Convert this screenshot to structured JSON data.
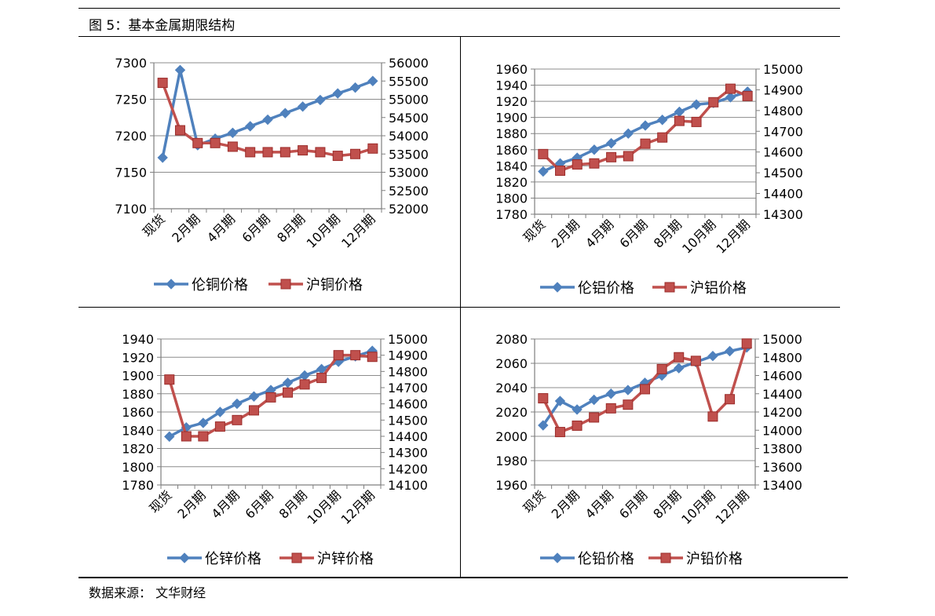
{
  "title": "图 5：基本金属期限结构",
  "source": "数据来源： 文华财经",
  "colors": {
    "lme": "#4F81BD",
    "shfe": "#C0504D",
    "grid": "#8C8C8C",
    "axis": "#7F7F7F"
  },
  "chart_data": [
    {
      "type": "line",
      "x_labels": [
        "现货",
        "",
        "2月期",
        "",
        "4月期",
        "",
        "6月期",
        "",
        "8月期",
        "",
        "10月期",
        "",
        "12月期"
      ],
      "left_axis": {
        "min": 7100,
        "max": 7300,
        "ticks": [
          "7100",
          "7150",
          "7200",
          "7250",
          "7300"
        ]
      },
      "right_axis": {
        "min": 52000,
        "max": 56000,
        "ticks": [
          "52000",
          "52500",
          "53000",
          "53500",
          "54000",
          "54500",
          "55000",
          "55500",
          "56000"
        ]
      },
      "series": [
        {
          "name": "伦铜价格",
          "axis": "left",
          "marker": "diamond",
          "values": [
            7170,
            7290,
            7187,
            7196,
            7204,
            7213,
            7222,
            7231,
            7240,
            7249,
            7258,
            7266,
            7275
          ]
        },
        {
          "name": "沪铜价格",
          "axis": "right",
          "marker": "square",
          "values": [
            55450,
            54150,
            53800,
            53800,
            53700,
            53550,
            53550,
            53550,
            53600,
            53550,
            53450,
            53500,
            53650
          ]
        }
      ]
    },
    {
      "type": "line",
      "x_labels": [
        "现货",
        "",
        "2月期",
        "",
        "4月期",
        "",
        "6月期",
        "",
        "8月期",
        "",
        "10月期",
        "",
        "12月期"
      ],
      "left_axis": {
        "min": 1780,
        "max": 1960,
        "ticks": [
          "1780",
          "1800",
          "1820",
          "1840",
          "1860",
          "1880",
          "1900",
          "1920",
          "1940",
          "1960"
        ]
      },
      "right_axis": {
        "min": 14300,
        "max": 15000,
        "ticks": [
          "14300",
          "14400",
          "14500",
          "14600",
          "14700",
          "14800",
          "14900",
          "15000"
        ]
      },
      "series": [
        {
          "name": "伦铝价格",
          "axis": "left",
          "marker": "diamond",
          "values": [
            1833,
            1843,
            1850,
            1860,
            1868,
            1880,
            1890,
            1897,
            1907,
            1916,
            1918,
            1925,
            1932
          ]
        },
        {
          "name": "沪铝价格",
          "axis": "right",
          "marker": "square",
          "values": [
            14590,
            14510,
            14540,
            14545,
            14575,
            14580,
            14640,
            14670,
            14750,
            14745,
            14840,
            14905,
            14870
          ]
        }
      ]
    },
    {
      "type": "line",
      "x_labels": [
        "现货",
        "",
        "2月期",
        "",
        "4月期",
        "",
        "6月期",
        "",
        "8月期",
        "",
        "10月期",
        "",
        "12月期"
      ],
      "left_axis": {
        "min": 1780,
        "max": 1940,
        "ticks": [
          "1780",
          "1800",
          "1820",
          "1840",
          "1860",
          "1880",
          "1900",
          "1920",
          "1940"
        ]
      },
      "right_axis": {
        "min": 14100,
        "max": 15000,
        "ticks": [
          "14100",
          "14200",
          "14300",
          "14400",
          "14500",
          "14600",
          "14700",
          "14800",
          "14900",
          "15000"
        ]
      },
      "series": [
        {
          "name": "伦锌价格",
          "axis": "left",
          "marker": "diamond",
          "values": [
            1833,
            1843,
            1848,
            1860,
            1869,
            1877,
            1884,
            1892,
            1900,
            1907,
            1915,
            1921,
            1927
          ]
        },
        {
          "name": "沪锌价格",
          "axis": "right",
          "marker": "square",
          "values": [
            14750,
            14400,
            14400,
            14460,
            14500,
            14560,
            14640,
            14670,
            14720,
            14760,
            14900,
            14900,
            14890
          ]
        }
      ]
    },
    {
      "type": "line",
      "x_labels": [
        "现货",
        "",
        "2月期",
        "",
        "4月期",
        "",
        "6月期",
        "",
        "8月期",
        "",
        "10月期",
        "",
        "12月期"
      ],
      "left_axis": {
        "min": 1960,
        "max": 2080,
        "ticks": [
          "1960",
          "1980",
          "2000",
          "2020",
          "2040",
          "2060",
          "2080"
        ]
      },
      "right_axis": {
        "min": 13400,
        "max": 15000,
        "ticks": [
          "13400",
          "13600",
          "13800",
          "14000",
          "14200",
          "14400",
          "14600",
          "14800",
          "15000"
        ]
      },
      "series": [
        {
          "name": "伦铅价格",
          "axis": "left",
          "marker": "diamond",
          "values": [
            2009,
            2029,
            2022,
            2030,
            2035,
            2038,
            2044,
            2050,
            2056,
            2061,
            2066,
            2070,
            2073
          ]
        },
        {
          "name": "沪铅价格",
          "axis": "right",
          "marker": "square",
          "values": [
            14350,
            13980,
            14050,
            14140,
            14240,
            14280,
            14450,
            14670,
            14800,
            14760,
            14150,
            14340,
            14950
          ]
        }
      ]
    }
  ]
}
